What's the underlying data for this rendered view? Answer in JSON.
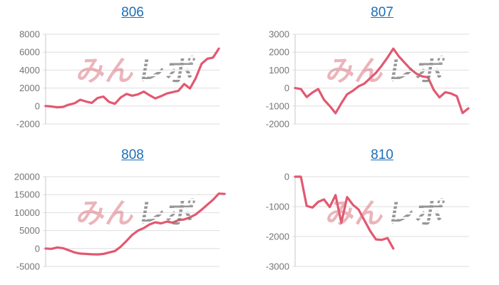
{
  "colors": {
    "line": "#e25871",
    "title_link": "#1d6eb7",
    "tick_label": "#757575",
    "gridline": "#dedede",
    "axis_line": "#c8c8c8",
    "watermark_pink": "#d8697780",
    "watermark_gray": "#7d7d7dcc",
    "background": "#ffffff"
  },
  "watermark": {
    "part1": "みん",
    "part2": "レポ"
  },
  "chart_data": [
    {
      "type": "line",
      "title": "806",
      "xlabel": "",
      "ylabel": "",
      "grid": true,
      "legend": "none",
      "ylim": [
        -2000,
        8000
      ],
      "yticks": [
        8000,
        6000,
        4000,
        2000,
        0,
        -2000
      ],
      "values": [
        0,
        -50,
        -150,
        -100,
        150,
        300,
        700,
        500,
        350,
        900,
        1050,
        450,
        250,
        950,
        1350,
        1150,
        1300,
        1600,
        1200,
        850,
        1100,
        1400,
        1550,
        1700,
        2450,
        1950,
        3100,
        4700,
        5260,
        5400,
        6400
      ]
    },
    {
      "type": "line",
      "title": "807",
      "xlabel": "",
      "ylabel": "",
      "grid": true,
      "legend": "none",
      "ylim": [
        -2000,
        3000
      ],
      "yticks": [
        3000,
        2000,
        1000,
        0,
        -1000,
        -2000
      ],
      "values": [
        0,
        -50,
        -500,
        -250,
        -50,
        -650,
        -1000,
        -1400,
        -850,
        -350,
        -150,
        100,
        250,
        550,
        850,
        1250,
        1700,
        2200,
        1750,
        1400,
        1050,
        800,
        650,
        600,
        -100,
        -520,
        -230,
        -300,
        -450,
        -1390,
        -1130
      ]
    },
    {
      "type": "line",
      "title": "808",
      "xlabel": "",
      "ylabel": "",
      "grid": true,
      "legend": "none",
      "ylim": [
        -5000,
        20000
      ],
      "yticks": [
        20000,
        15000,
        10000,
        5000,
        0,
        -5000
      ],
      "values": [
        0,
        -100,
        300,
        100,
        -500,
        -1100,
        -1400,
        -1500,
        -1600,
        -1650,
        -1500,
        -1100,
        -700,
        500,
        2100,
        3800,
        5000,
        5700,
        6700,
        7300,
        7000,
        7500,
        7200,
        7900,
        8100,
        8700,
        9500,
        10800,
        12200,
        13600,
        15300,
        15200
      ]
    },
    {
      "type": "line",
      "title": "810",
      "xlabel": "",
      "ylabel": "",
      "grid": true,
      "legend": "none",
      "ylim": [
        -3000,
        0
      ],
      "yticks": [
        0,
        -1000,
        -2000,
        -3000
      ],
      "values": [
        0,
        0,
        -975,
        -1030,
        -840,
        -760,
        -1015,
        -615,
        -1540,
        -680,
        -935,
        -1100,
        -1460,
        -1815,
        -2095,
        -2110,
        -2050,
        -2400
      ]
    }
  ]
}
